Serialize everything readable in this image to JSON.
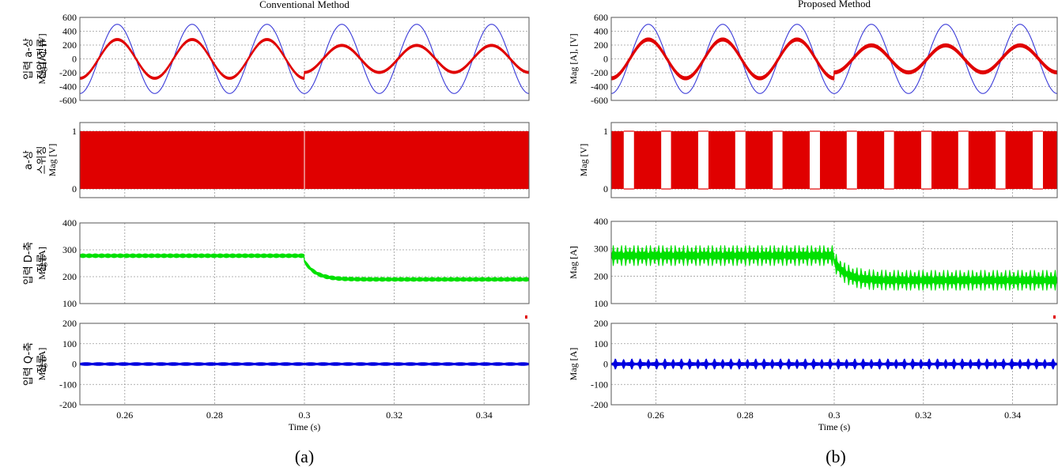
{
  "chart_data": [
    {
      "type": "line",
      "title": "Conventional Method",
      "caption": "(a)",
      "xlabel": "Time (s)",
      "xlim": [
        0.25,
        0.35
      ],
      "xticks": [
        0.26,
        0.28,
        0.3,
        0.32,
        0.34
      ],
      "xtick_labels": [
        "0.26",
        "0.28",
        "0.3",
        "0.32",
        "0.34"
      ],
      "grid": true,
      "panels": [
        {
          "id": "va_ia",
          "side_label": [
            "입력 a-상",
            "전압/전류"
          ],
          "ylabel": "Mag [A], [V]",
          "ylim": [
            -600,
            600
          ],
          "yticks": [
            -600,
            -400,
            -200,
            0,
            200,
            400,
            600
          ],
          "series": [
            {
              "kind": "sine",
              "color": "#3a3ad8",
              "amp": 500,
              "freq": 60,
              "phase_deg": -90,
              "ripple": 0
            },
            {
              "kind": "sine_step",
              "color": "#e00000",
              "amp_before": 280,
              "amp_after": 195,
              "t_step": 0.3,
              "freq": 60,
              "phase_deg": -90,
              "ripple": 30
            }
          ]
        },
        {
          "id": "switching",
          "side_label": [
            "a-상",
            "스위칭"
          ],
          "ylabel": "Mag [V]",
          "ylim": [
            -0.15,
            1.15
          ],
          "yticks": [
            0,
            1
          ],
          "series": [
            {
              "kind": "pwm",
              "color": "#e00000",
              "low": 0,
              "high": 1,
              "off_intervals": []
            }
          ]
        },
        {
          "id": "id",
          "side_label": [
            "입력 D-축",
            "전류"
          ],
          "ylabel": "Mag [A]",
          "ylim": [
            100,
            400
          ],
          "yticks": [
            100,
            200,
            300,
            400
          ],
          "series": [
            {
              "kind": "band_step",
              "color": "#00e000",
              "level_before": 278,
              "level_after": 190,
              "t_step": 0.3,
              "band": 14,
              "spike": 0,
              "ripple_freq": 720
            }
          ]
        },
        {
          "id": "iq",
          "side_label": [
            "입력 Q-축",
            "전류"
          ],
          "ylabel": "Mag [A]",
          "ylim": [
            -200,
            200
          ],
          "yticks": [
            -200,
            -100,
            0,
            100,
            200
          ],
          "series": [
            {
              "kind": "band",
              "color": "#0000e0",
              "level": 0,
              "band": 14,
              "spike": 0,
              "ripple_freq": 360
            }
          ]
        }
      ]
    },
    {
      "type": "line",
      "title": "Proposed Method",
      "caption": "(b)",
      "xlabel": "Time (s)",
      "xlim": [
        0.25,
        0.35
      ],
      "xticks": [
        0.26,
        0.28,
        0.3,
        0.32,
        0.34
      ],
      "xtick_labels": [
        "0.26",
        "0.28",
        "0.3",
        "0.32",
        "0.34"
      ],
      "grid": true,
      "panels": [
        {
          "id": "va_ia",
          "side_label": [],
          "ylabel": "Mag [A], [V]",
          "ylim": [
            -600,
            600
          ],
          "yticks": [
            -600,
            -400,
            -200,
            0,
            200,
            400,
            600
          ],
          "series": [
            {
              "kind": "sine",
              "color": "#3a3ad8",
              "amp": 500,
              "freq": 60,
              "phase_deg": -90,
              "ripple": 0
            },
            {
              "kind": "sine_step",
              "color": "#e00000",
              "amp_before": 280,
              "amp_after": 195,
              "t_step": 0.3,
              "freq": 60,
              "phase_deg": -90,
              "ripple": 45
            }
          ]
        },
        {
          "id": "switching",
          "side_label": [],
          "ylabel": "Mag [V]",
          "ylim": [
            -0.15,
            1.15
          ],
          "yticks": [
            0,
            1
          ],
          "series": [
            {
              "kind": "pwm",
              "color": "#e00000",
              "low": 0,
              "high": 1,
              "off_intervals": [
                [
                  0.2528,
                  0.2551
                ],
                [
                  0.2612,
                  0.2634
                ],
                [
                  0.2695,
                  0.2718
                ],
                [
                  0.2778,
                  0.2801
                ],
                [
                  0.2862,
                  0.2884
                ],
                [
                  0.2945,
                  0.2968
                ],
                [
                  0.3028,
                  0.3051
                ],
                [
                  0.3112,
                  0.3134
                ],
                [
                  0.3195,
                  0.3218
                ],
                [
                  0.3278,
                  0.3301
                ],
                [
                  0.3362,
                  0.3384
                ],
                [
                  0.3445,
                  0.3468
                ]
              ]
            }
          ]
        },
        {
          "id": "id",
          "side_label": [],
          "ylabel": "Mag [A]",
          "ylim": [
            100,
            400
          ],
          "yticks": [
            100,
            200,
            300,
            400
          ],
          "series": [
            {
              "kind": "band_step",
              "color": "#00e000",
              "level_before": 275,
              "level_after": 185,
              "t_step": 0.3,
              "band": 28,
              "spike": 25,
              "ripple_freq": 720
            }
          ]
        },
        {
          "id": "iq",
          "side_label": [],
          "ylabel": "Mag [A]",
          "ylim": [
            -200,
            200
          ],
          "yticks": [
            -200,
            -100,
            0,
            100,
            200
          ],
          "series": [
            {
              "kind": "band",
              "color": "#0000e0",
              "level": 0,
              "band": 15,
              "spike": 18,
              "ripple_freq": 360
            }
          ]
        }
      ]
    }
  ]
}
